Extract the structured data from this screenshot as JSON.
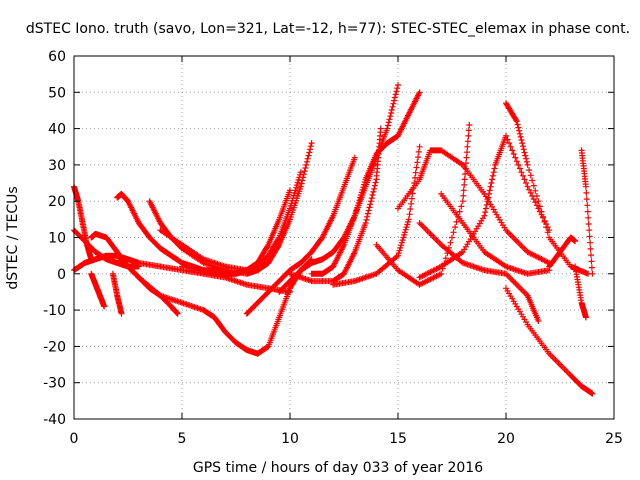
{
  "chart_data": {
    "type": "scatter",
    "title": "dSTEC Iono. truth (savo, Lon=321, Lat=-12, h=77): STEC-STEC_elemax in phase cont.",
    "xlabel": "GPS time / hours of day 033 of year 2016",
    "ylabel": "dSTEC  / TECUs",
    "xlim": [
      0,
      25
    ],
    "ylim": [
      -40,
      60
    ],
    "xticks": [
      "0",
      "5",
      "10",
      "15",
      "20",
      "25"
    ],
    "yticks": [
      "-40",
      "-30",
      "-20",
      "-10",
      "0",
      "10",
      "20",
      "30",
      "40",
      "50",
      "60"
    ],
    "grid": true,
    "marker": "+",
    "color": "#ff0000",
    "series": [
      {
        "x": [
          0.0,
          0.2,
          0.4,
          0.6,
          0.8
        ],
        "y": [
          24,
          20,
          14,
          8,
          4
        ]
      },
      {
        "x": [
          0.0,
          0.5,
          1.0,
          1.5,
          2.0,
          2.5,
          3.0
        ],
        "y": [
          12,
          9,
          6,
          4,
          3,
          2,
          2
        ]
      },
      {
        "x": [
          0.0,
          0.5,
          1.0,
          1.5,
          2.0,
          2.5,
          3.0,
          4.0,
          5.0,
          6.0,
          7.0,
          8.0,
          9.0,
          10.0
        ],
        "y": [
          1,
          3,
          4,
          5,
          5,
          4,
          3,
          2,
          1,
          0,
          -1,
          -3,
          -4,
          -5
        ]
      },
      {
        "x": [
          0.8,
          1.0,
          1.5,
          2.0,
          2.5,
          3.0,
          3.5,
          4.0,
          4.5,
          4.8
        ],
        "y": [
          10,
          11,
          10,
          6,
          2,
          -1,
          -4,
          -6,
          -9,
          -11
        ]
      },
      {
        "x": [
          0.8,
          1.0,
          1.2,
          1.4
        ],
        "y": [
          0,
          -3,
          -6,
          -9
        ]
      },
      {
        "x": [
          1.8,
          2.0,
          2.2
        ],
        "y": [
          0,
          -6,
          -11
        ]
      },
      {
        "x": [
          2.0,
          2.2,
          2.5,
          3.0,
          3.5,
          4.0,
          4.5,
          5.0,
          5.5,
          6.0,
          6.5,
          7.0,
          7.5,
          8.0
        ],
        "y": [
          21,
          22,
          20,
          14,
          10,
          7,
          5,
          3,
          2,
          1,
          0,
          0,
          0,
          1
        ]
      },
      {
        "x": [
          2.0,
          2.5,
          3.0,
          4.0,
          5.0,
          6.0,
          6.5,
          7.0,
          7.5,
          8.0,
          8.5,
          9.0,
          9.5,
          10.0,
          10.5,
          11.0
        ],
        "y": [
          5,
          2,
          -1,
          -6,
          -8,
          -10,
          -12,
          -16,
          -19,
          -21,
          -22,
          -20,
          -12,
          -4,
          1,
          4
        ]
      },
      {
        "x": [
          3.5,
          4.0,
          4.5,
          5.0,
          6.0,
          7.0,
          8.0,
          8.5,
          9.0,
          9.5,
          10.0,
          10.5,
          11.0
        ],
        "y": [
          20,
          14,
          10,
          7,
          3,
          1,
          0,
          1,
          3,
          8,
          15,
          24,
          36
        ]
      },
      {
        "x": [
          4.0,
          5.0,
          6.0,
          7.0,
          8.0,
          8.5,
          9.0,
          9.5,
          10.0,
          10.5
        ],
        "y": [
          12,
          8,
          4,
          2,
          1,
          2,
          5,
          10,
          18,
          28
        ]
      },
      {
        "x": [
          5.0,
          6.0,
          6.5,
          7.0,
          7.5,
          8.0,
          8.5,
          9.0,
          9.5,
          10.0
        ],
        "y": [
          2,
          1,
          1,
          0,
          0,
          1,
          3,
          8,
          15,
          23
        ]
      },
      {
        "x": [
          8.0,
          8.5,
          9.0,
          9.5,
          10.0,
          10.5,
          11.0,
          11.5,
          12.0,
          12.5,
          13.0
        ],
        "y": [
          -11,
          -8,
          -5,
          -2,
          1,
          3,
          6,
          10,
          16,
          24,
          32
        ]
      },
      {
        "x": [
          9.5,
          10.0,
          10.5,
          11.0,
          11.5,
          12.0,
          12.5,
          13.0,
          13.5,
          14.0,
          14.5,
          15.0
        ],
        "y": [
          -5,
          -2,
          1,
          3,
          4,
          6,
          10,
          16,
          24,
          32,
          40,
          52
        ]
      },
      {
        "x": [
          10.0,
          11.0,
          12.0,
          12.5,
          13.0,
          13.5,
          14.0,
          14.2
        ],
        "y": [
          0,
          -2,
          -2,
          0,
          6,
          14,
          26,
          40
        ]
      },
      {
        "x": [
          11.0,
          11.5,
          12.0,
          12.5,
          13.0,
          13.5,
          14.0,
          14.5,
          15.0,
          15.5,
          16.0
        ],
        "y": [
          0,
          0,
          2,
          8,
          16,
          26,
          33,
          36,
          38,
          44,
          50
        ]
      },
      {
        "x": [
          12.0,
          13.0,
          14.0,
          15.0,
          15.5,
          16.0
        ],
        "y": [
          -3,
          -2,
          0,
          5,
          15,
          35
        ]
      },
      {
        "x": [
          14.0,
          15.0,
          16.0,
          17.0,
          18.0,
          18.3
        ],
        "y": [
          8,
          1,
          -3,
          0,
          20,
          41
        ]
      },
      {
        "x": [
          15.0,
          16.0,
          16.5,
          17.0,
          18.0,
          19.0,
          20.0,
          21.0,
          22.0
        ],
        "y": [
          18,
          26,
          34,
          34,
          30,
          22,
          12,
          6,
          3
        ]
      },
      {
        "x": [
          16.0,
          17.0,
          18.0,
          19.0,
          19.5,
          20.0,
          21.0,
          22.0
        ],
        "y": [
          -1,
          2,
          6,
          16,
          30,
          38,
          24,
          12
        ]
      },
      {
        "x": [
          16.0,
          17.0,
          18.0,
          19.0,
          20.0,
          21.0,
          21.5
        ],
        "y": [
          14,
          8,
          3,
          1,
          0,
          -6,
          -13
        ]
      },
      {
        "x": [
          17.0,
          18.0,
          19.0,
          20.0,
          21.0,
          22.0
        ],
        "y": [
          22,
          14,
          6,
          2,
          0,
          1
        ]
      },
      {
        "x": [
          20.0,
          20.5,
          21.0,
          22.0,
          23.0,
          23.8
        ],
        "y": [
          47,
          42,
          30,
          10,
          2,
          0
        ]
      },
      {
        "x": [
          20.0,
          21.0,
          22.0,
          23.0,
          23.5,
          24.0
        ],
        "y": [
          -4,
          -14,
          -22,
          -28,
          -31,
          -33
        ]
      },
      {
        "x": [
          22.0,
          22.5,
          23.0,
          23.2
        ],
        "y": [
          2,
          6,
          10,
          9
        ]
      },
      {
        "x": [
          23.5,
          23.7,
          24.0
        ],
        "y": [
          34,
          24,
          0
        ]
      },
      {
        "x": [
          23.2,
          23.5,
          23.7
        ],
        "y": [
          2,
          -8,
          -12
        ]
      }
    ]
  }
}
